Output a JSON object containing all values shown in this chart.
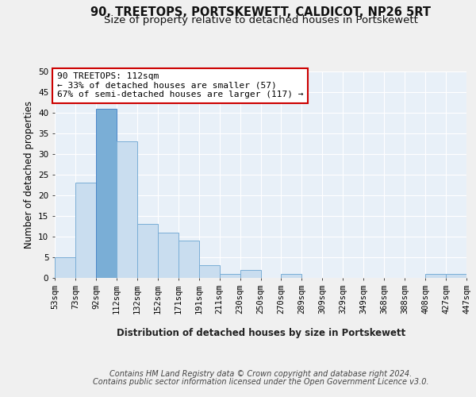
{
  "title": "90, TREETOPS, PORTSKEWETT, CALDICOT, NP26 5RT",
  "subtitle": "Size of property relative to detached houses in Portskewett",
  "xlabel": "Distribution of detached houses by size in Portskewett",
  "ylabel": "Number of detached properties",
  "bar_values": [
    5,
    23,
    41,
    33,
    13,
    11,
    9,
    3,
    1,
    2,
    0,
    1,
    0,
    0,
    0,
    0,
    0,
    0,
    1,
    1
  ],
  "categories": [
    "53sqm",
    "73sqm",
    "92sqm",
    "112sqm",
    "132sqm",
    "152sqm",
    "171sqm",
    "191sqm",
    "211sqm",
    "230sqm",
    "250sqm",
    "270sqm",
    "289sqm",
    "309sqm",
    "329sqm",
    "349sqm",
    "368sqm",
    "388sqm",
    "408sqm",
    "427sqm",
    "447sqm"
  ],
  "bar_color": "#c9ddef",
  "bar_edge_color": "#7aaed6",
  "highlight_bar_index": 2,
  "highlight_bar_color": "#7aaed6",
  "highlight_bar_edge_color": "#4a86c8",
  "background_color": "#e8f0f8",
  "grid_color": "#ffffff",
  "annotation_box_color": "#cc0000",
  "annotation_text": "90 TREETOPS: 112sqm\n← 33% of detached houses are smaller (57)\n67% of semi-detached houses are larger (117) →",
  "ylim": [
    0,
    50
  ],
  "yticks": [
    0,
    5,
    10,
    15,
    20,
    25,
    30,
    35,
    40,
    45,
    50
  ],
  "footer_line1": "Contains HM Land Registry data © Crown copyright and database right 2024.",
  "footer_line2": "Contains public sector information licensed under the Open Government Licence v3.0.",
  "title_fontsize": 10.5,
  "subtitle_fontsize": 9.5,
  "axis_label_fontsize": 8.5,
  "tick_fontsize": 7.5,
  "annotation_fontsize": 8,
  "footer_fontsize": 7
}
